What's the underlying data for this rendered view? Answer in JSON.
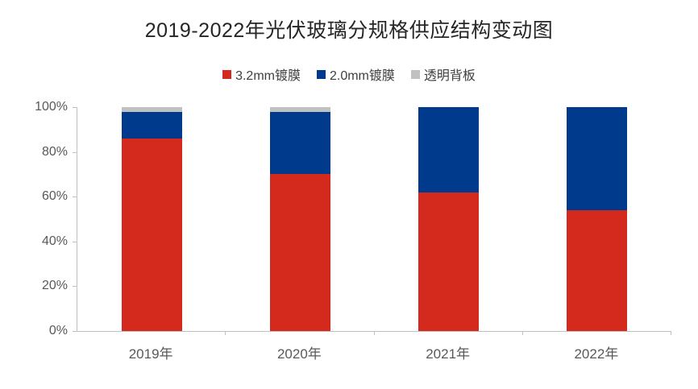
{
  "title": "2019-2022年光伏玻璃分规格供应结构变动图",
  "chart_data": {
    "type": "bar",
    "stacked": true,
    "orientation": "vertical",
    "title": "2019-2022年光伏玻璃分规格供应结构变动图",
    "categories": [
      "2019年",
      "2020年",
      "2021年",
      "2022年"
    ],
    "series": [
      {
        "name": "3.2mm镀膜",
        "color": "#d42a1e",
        "values": [
          86,
          70,
          62,
          54
        ]
      },
      {
        "name": "2.0mm镀膜",
        "color": "#003a8c",
        "values": [
          12,
          28,
          38,
          46
        ]
      },
      {
        "name": "透明背板",
        "color": "#c1c1c1",
        "values": [
          2,
          2,
          0,
          0
        ]
      }
    ],
    "xlabel": "",
    "ylabel": "",
    "ylim": [
      0,
      100
    ],
    "y_ticks": [
      {
        "label": "0%",
        "value": 0
      },
      {
        "label": "20%",
        "value": 20
      },
      {
        "label": "40%",
        "value": 40
      },
      {
        "label": "60%",
        "value": 60
      },
      {
        "label": "80%",
        "value": 80
      },
      {
        "label": "100%",
        "value": 100
      }
    ],
    "grid": false,
    "legend_position": "top"
  },
  "colors": {
    "axis": "#c0c0c0",
    "tick_label": "#595959",
    "title_text": "#262626",
    "legend_text": "#404040",
    "background": "#ffffff"
  }
}
